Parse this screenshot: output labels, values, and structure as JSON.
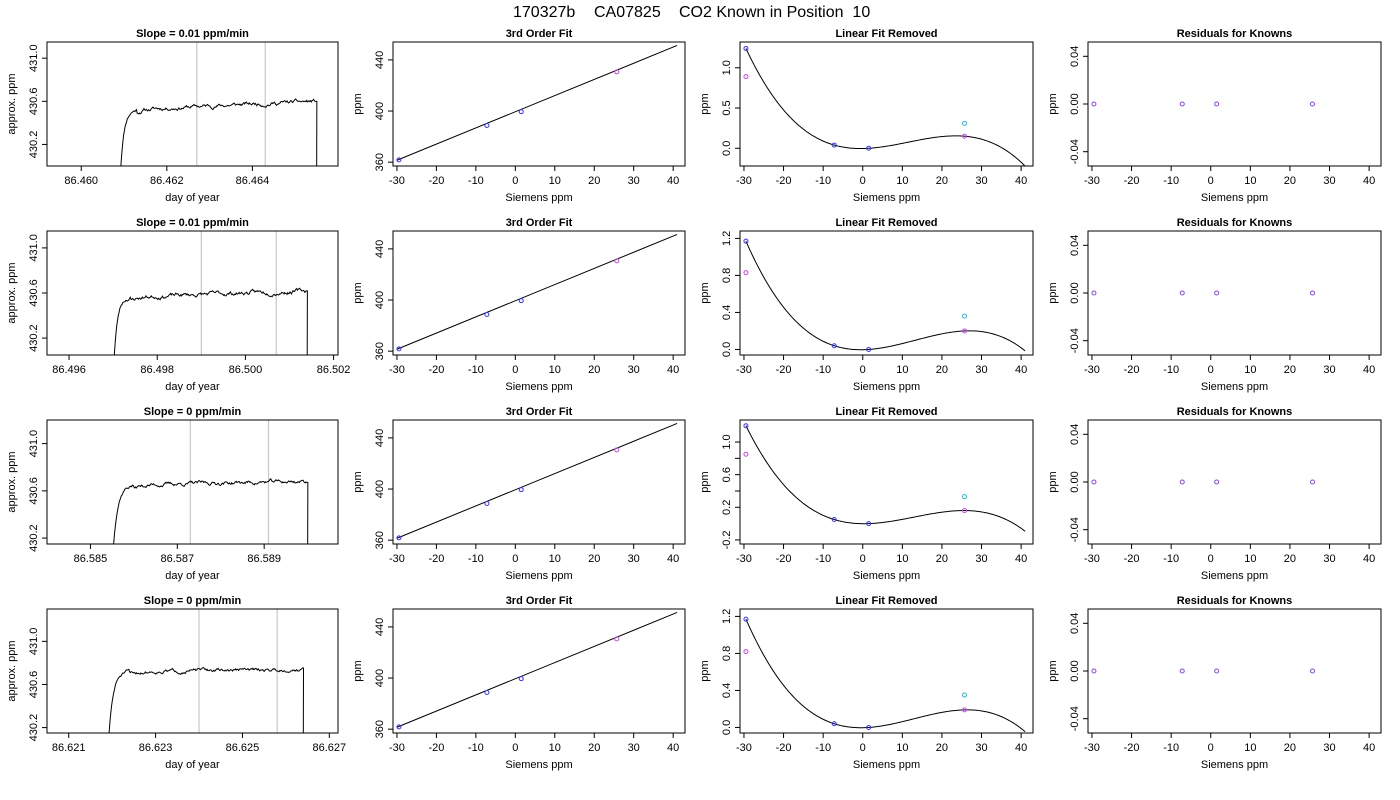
{
  "figure": {
    "title_parts": [
      "170327b",
      "CA07825",
      "CO2 Known in Position  10"
    ]
  },
  "colors": {
    "trace": "#000000",
    "window": "#c8c8c8",
    "fit_line": "#000000",
    "point_blue": "#3333ff",
    "point_magenta": "#cc44ee",
    "point_cyan": "#22bbdd",
    "point_purple": "#8844ee"
  },
  "chart_data": [
    {
      "type": "line",
      "panel": "timeseries",
      "row": 0,
      "title": "Slope =  0.01  ppm/min",
      "xlabel": "day of year",
      "ylabel": "approx. ppm",
      "xlim": [
        86.4592,
        86.466
      ],
      "ylim": [
        430.0,
        431.15
      ],
      "xticks": [
        86.46,
        86.462,
        86.464
      ],
      "xtick_labels": [
        "86.460",
        "86.462",
        "86.464"
      ],
      "yticks": [
        430.2,
        430.6,
        431.0
      ],
      "ytick_labels": [
        "430.2",
        "430.6",
        "431.0"
      ],
      "window": [
        86.4627,
        86.4643
      ],
      "trace": {
        "t_start": 86.4609,
        "t_rise": 86.4613,
        "t_end": 86.4655,
        "plateau": 430.52,
        "final": 430.6,
        "noise": 0.015,
        "seed": 11
      }
    },
    {
      "type": "line",
      "panel": "timeseries",
      "row": 1,
      "title": "Slope =  0.01  ppm/min",
      "xlabel": "day of year",
      "ylabel": "approx. ppm",
      "xlim": [
        86.4955,
        86.5021
      ],
      "ylim": [
        430.05,
        431.15
      ],
      "xticks": [
        86.496,
        86.498,
        86.5,
        86.502
      ],
      "xtick_labels": [
        "86.496",
        "86.498",
        "86.500",
        "86.502"
      ],
      "yticks": [
        430.2,
        430.6,
        431.0
      ],
      "ytick_labels": [
        "430.2",
        "430.6",
        "431.0"
      ],
      "window": [
        86.499,
        86.5007
      ],
      "trace": {
        "t_start": 86.497,
        "t_rise": 86.4974,
        "t_end": 86.5014,
        "plateau": 430.56,
        "final": 430.62,
        "noise": 0.015,
        "seed": 23
      }
    },
    {
      "type": "line",
      "panel": "timeseries",
      "row": 2,
      "title": "Slope =  0  ppm/min",
      "xlabel": "day of year",
      "ylabel": "approx. ppm",
      "xlim": [
        86.584,
        86.5907
      ],
      "ylim": [
        430.15,
        431.2
      ],
      "xticks": [
        86.585,
        86.587,
        86.589
      ],
      "xtick_labels": [
        "86.585",
        "86.587",
        "86.589"
      ],
      "yticks": [
        430.2,
        430.6,
        431.0
      ],
      "ytick_labels": [
        "430.2",
        "430.6",
        "431.0"
      ],
      "window": [
        86.5873,
        86.5891
      ],
      "trace": {
        "t_start": 86.5855,
        "t_rise": 86.586,
        "t_end": 86.59,
        "plateau": 430.65,
        "final": 430.68,
        "noise": 0.013,
        "seed": 37
      }
    },
    {
      "type": "line",
      "panel": "timeseries",
      "row": 3,
      "title": "Slope =  0  ppm/min",
      "xlabel": "day of year",
      "ylabel": "approx. ppm",
      "xlim": [
        86.6205,
        86.6272
      ],
      "ylim": [
        430.15,
        431.3
      ],
      "xticks": [
        86.621,
        86.623,
        86.625,
        86.627
      ],
      "xtick_labels": [
        "86.621",
        "86.623",
        "86.625",
        "86.627"
      ],
      "yticks": [
        430.2,
        430.6,
        431.0
      ],
      "ytick_labels": [
        "430.2",
        "430.6",
        "431.0"
      ],
      "window": [
        86.624,
        86.6258
      ],
      "trace": {
        "t_start": 86.6219,
        "t_rise": 86.6224,
        "t_end": 86.6264,
        "plateau": 430.72,
        "final": 430.74,
        "noise": 0.013,
        "seed": 51
      }
    },
    {
      "type": "scatter",
      "panel": "fit",
      "row": 0,
      "title": "3rd Order Fit",
      "xlabel": "Siemens ppm",
      "ylabel": "ppm",
      "xlim": [
        -31,
        43
      ],
      "ylim": [
        357,
        454
      ],
      "xticks": [
        -30,
        -20,
        -10,
        0,
        10,
        20,
        30,
        40
      ],
      "xtick_labels": [
        "-30",
        "-20",
        "-10",
        "0",
        "10",
        "20",
        "30",
        "40"
      ],
      "yticks": [
        360,
        400,
        440
      ],
      "ytick_labels": [
        "360",
        "400",
        "440"
      ],
      "line": {
        "x": [
          -30,
          41
        ],
        "y": [
          361.5,
          451.3
        ]
      },
      "points": [
        {
          "x": -29.5,
          "y": 361.8,
          "color": "point_blue"
        },
        {
          "x": -7.2,
          "y": 388.7,
          "color": "point_blue"
        },
        {
          "x": 1.5,
          "y": 399.5,
          "color": "point_blue"
        },
        {
          "x": 25.7,
          "y": 430.6,
          "color": "point_magenta"
        }
      ]
    },
    {
      "type": "scatter",
      "panel": "fit",
      "row": 1,
      "title": "3rd Order Fit",
      "xlabel": "Siemens ppm",
      "ylabel": "ppm",
      "xlim": [
        -31,
        43
      ],
      "ylim": [
        357,
        454
      ],
      "xticks": [
        -30,
        -20,
        -10,
        0,
        10,
        20,
        30,
        40
      ],
      "xtick_labels": [
        "-30",
        "-20",
        "-10",
        "0",
        "10",
        "20",
        "30",
        "40"
      ],
      "yticks": [
        360,
        400,
        440
      ],
      "ytick_labels": [
        "360",
        "400",
        "440"
      ],
      "line": {
        "x": [
          -30,
          41
        ],
        "y": [
          361.5,
          451.3
        ]
      },
      "points": [
        {
          "x": -29.5,
          "y": 361.8,
          "color": "point_blue"
        },
        {
          "x": -7.2,
          "y": 388.7,
          "color": "point_blue"
        },
        {
          "x": 1.5,
          "y": 399.5,
          "color": "point_blue"
        },
        {
          "x": 25.7,
          "y": 430.6,
          "color": "point_magenta"
        }
      ]
    },
    {
      "type": "scatter",
      "panel": "fit",
      "row": 2,
      "title": "3rd Order Fit",
      "xlabel": "Siemens ppm",
      "ylabel": "ppm",
      "xlim": [
        -31,
        43
      ],
      "ylim": [
        357,
        454
      ],
      "xticks": [
        -30,
        -20,
        -10,
        0,
        10,
        20,
        30,
        40
      ],
      "xtick_labels": [
        "-30",
        "-20",
        "-10",
        "0",
        "10",
        "20",
        "30",
        "40"
      ],
      "yticks": [
        360,
        400,
        440
      ],
      "ytick_labels": [
        "360",
        "400",
        "440"
      ],
      "line": {
        "x": [
          -30,
          41
        ],
        "y": [
          361.5,
          451.3
        ]
      },
      "points": [
        {
          "x": -29.5,
          "y": 361.8,
          "color": "point_blue"
        },
        {
          "x": -7.2,
          "y": 388.7,
          "color": "point_blue"
        },
        {
          "x": 1.5,
          "y": 399.5,
          "color": "point_blue"
        },
        {
          "x": 25.7,
          "y": 430.6,
          "color": "point_magenta"
        }
      ]
    },
    {
      "type": "scatter",
      "panel": "fit",
      "row": 3,
      "title": "3rd Order Fit",
      "xlabel": "Siemens ppm",
      "ylabel": "ppm",
      "xlim": [
        -31,
        43
      ],
      "ylim": [
        357,
        454
      ],
      "xticks": [
        -30,
        -20,
        -10,
        0,
        10,
        20,
        30,
        40
      ],
      "xtick_labels": [
        "-30",
        "-20",
        "-10",
        "0",
        "10",
        "20",
        "30",
        "40"
      ],
      "yticks": [
        360,
        400,
        440
      ],
      "ytick_labels": [
        "360",
        "400",
        "440"
      ],
      "line": {
        "x": [
          -30,
          41
        ],
        "y": [
          361.5,
          451.3
        ]
      },
      "points": [
        {
          "x": -29.5,
          "y": 361.8,
          "color": "point_blue"
        },
        {
          "x": -7.2,
          "y": 388.7,
          "color": "point_blue"
        },
        {
          "x": 1.5,
          "y": 399.5,
          "color": "point_blue"
        },
        {
          "x": 25.7,
          "y": 430.6,
          "color": "point_magenta"
        }
      ]
    },
    {
      "type": "scatter",
      "panel": "linear_removed",
      "row": 0,
      "title": "Linear Fit Removed",
      "xlabel": "Siemens ppm",
      "ylabel": "ppm",
      "xlim": [
        -31,
        43
      ],
      "ylim": [
        -0.22,
        1.32
      ],
      "xticks": [
        -30,
        -20,
        -10,
        0,
        10,
        20,
        30,
        40
      ],
      "xtick_labels": [
        "-30",
        "-20",
        "-10",
        "0",
        "10",
        "20",
        "30",
        "40"
      ],
      "yticks": [
        0.0,
        0.5,
        1.0
      ],
      "ytick_labels": [
        "0.0",
        "0.5",
        "1.0"
      ],
      "curve": {
        "x": [
          -29.5,
          -7.2,
          1.5,
          25.7
        ],
        "y": [
          1.24,
          0.04,
          0.0,
          0.15
        ],
        "x_range": [
          -29.5,
          41
        ]
      },
      "points": [
        {
          "x": -29.5,
          "y": 1.24,
          "color": "point_blue"
        },
        {
          "x": -29.5,
          "y": 0.89,
          "color": "point_magenta"
        },
        {
          "x": -7.2,
          "y": 0.04,
          "color": "point_blue"
        },
        {
          "x": 1.5,
          "y": 0.0,
          "color": "point_blue"
        },
        {
          "x": 25.7,
          "y": 0.31,
          "color": "point_cyan"
        },
        {
          "x": 25.7,
          "y": 0.15,
          "color": "point_magenta"
        }
      ]
    },
    {
      "type": "scatter",
      "panel": "linear_removed",
      "row": 1,
      "title": "Linear Fit Removed",
      "xlabel": "Siemens ppm",
      "ylabel": "ppm",
      "xlim": [
        -31,
        43
      ],
      "ylim": [
        -0.06,
        1.28
      ],
      "xticks": [
        -30,
        -20,
        -10,
        0,
        10,
        20,
        30,
        40
      ],
      "xtick_labels": [
        "-30",
        "-20",
        "-10",
        "0",
        "10",
        "20",
        "30",
        "40"
      ],
      "yticks": [
        0.0,
        0.4,
        0.8,
        1.2
      ],
      "ytick_labels": [
        "0.0",
        "0.4",
        "0.8",
        "1.2"
      ],
      "curve": {
        "x": [
          -29.5,
          -7.2,
          1.5,
          25.7
        ],
        "y": [
          1.17,
          0.04,
          0.0,
          0.2
        ],
        "x_range": [
          -29.5,
          41
        ]
      },
      "points": [
        {
          "x": -29.5,
          "y": 1.17,
          "color": "point_blue"
        },
        {
          "x": -29.5,
          "y": 0.83,
          "color": "point_magenta"
        },
        {
          "x": -7.2,
          "y": 0.04,
          "color": "point_blue"
        },
        {
          "x": 1.5,
          "y": 0.0,
          "color": "point_blue"
        },
        {
          "x": 25.7,
          "y": 0.36,
          "color": "point_cyan"
        },
        {
          "x": 25.7,
          "y": 0.2,
          "color": "point_magenta"
        }
      ]
    },
    {
      "type": "scatter",
      "panel": "linear_removed",
      "row": 2,
      "title": "Linear Fit Removed",
      "xlabel": "Siemens ppm",
      "ylabel": "ppm",
      "xlim": [
        -31,
        43
      ],
      "ylim": [
        -0.25,
        1.27
      ],
      "xticks": [
        -30,
        -20,
        -10,
        0,
        10,
        20,
        30,
        40
      ],
      "xtick_labels": [
        "-30",
        "-20",
        "-10",
        "0",
        "10",
        "20",
        "30",
        "40"
      ],
      "yticks": [
        -0.2,
        0.2,
        0.6,
        1.0
      ],
      "ytick_labels": [
        "-0.2",
        "0.2",
        "0.6",
        "1.0"
      ],
      "ytick_minor": [
        0.4,
        0.8
      ],
      "curve": {
        "x": [
          -29.5,
          -7.2,
          1.5,
          25.7
        ],
        "y": [
          1.2,
          0.05,
          0.0,
          0.16
        ],
        "x_range": [
          -29.5,
          41
        ]
      },
      "points": [
        {
          "x": -29.5,
          "y": 1.2,
          "color": "point_blue"
        },
        {
          "x": -29.5,
          "y": 0.85,
          "color": "point_magenta"
        },
        {
          "x": -7.2,
          "y": 0.05,
          "color": "point_blue"
        },
        {
          "x": 1.5,
          "y": 0.0,
          "color": "point_blue"
        },
        {
          "x": 25.7,
          "y": 0.33,
          "color": "point_cyan"
        },
        {
          "x": 25.7,
          "y": 0.16,
          "color": "point_magenta"
        }
      ]
    },
    {
      "type": "scatter",
      "panel": "linear_removed",
      "row": 3,
      "title": "Linear Fit Removed",
      "xlabel": "Siemens ppm",
      "ylabel": "ppm",
      "xlim": [
        -31,
        43
      ],
      "ylim": [
        -0.06,
        1.28
      ],
      "xticks": [
        -30,
        -20,
        -10,
        0,
        10,
        20,
        30,
        40
      ],
      "xtick_labels": [
        "-30",
        "-20",
        "-10",
        "0",
        "10",
        "20",
        "30",
        "40"
      ],
      "yticks": [
        0.0,
        0.4,
        0.8,
        1.2
      ],
      "ytick_labels": [
        "0.0",
        "0.4",
        "0.8",
        "1.2"
      ],
      "curve": {
        "x": [
          -29.5,
          -7.2,
          1.5,
          25.7
        ],
        "y": [
          1.17,
          0.04,
          0.0,
          0.19
        ],
        "x_range": [
          -29.5,
          41
        ]
      },
      "points": [
        {
          "x": -29.5,
          "y": 1.17,
          "color": "point_blue"
        },
        {
          "x": -29.5,
          "y": 0.82,
          "color": "point_magenta"
        },
        {
          "x": -7.2,
          "y": 0.04,
          "color": "point_blue"
        },
        {
          "x": 1.5,
          "y": 0.0,
          "color": "point_blue"
        },
        {
          "x": 25.7,
          "y": 0.35,
          "color": "point_cyan"
        },
        {
          "x": 25.7,
          "y": 0.19,
          "color": "point_magenta"
        }
      ]
    },
    {
      "type": "scatter",
      "panel": "residuals",
      "row": 0,
      "title": "Residuals for Knowns",
      "xlabel": "Siemens ppm",
      "ylabel": "ppm",
      "xlim": [
        -31,
        43
      ],
      "ylim": [
        -0.052,
        0.052
      ],
      "xticks": [
        -30,
        -20,
        -10,
        0,
        10,
        20,
        30,
        40
      ],
      "xtick_labels": [
        "-30",
        "-20",
        "-10",
        "0",
        "10",
        "20",
        "30",
        "40"
      ],
      "yticks": [
        -0.04,
        0.0,
        0.04
      ],
      "ytick_labels": [
        "-0.04",
        "0.00",
        "0.04"
      ],
      "points": [
        {
          "x": -29.5,
          "y": 0.0,
          "color": "point_purple"
        },
        {
          "x": -7.2,
          "y": 0.0,
          "color": "point_purple"
        },
        {
          "x": 1.5,
          "y": 0.0,
          "color": "point_purple"
        },
        {
          "x": 25.7,
          "y": 0.0,
          "color": "point_purple"
        }
      ]
    },
    {
      "type": "scatter",
      "panel": "residuals",
      "row": 1,
      "title": "Residuals for Knowns",
      "xlabel": "Siemens ppm",
      "ylabel": "ppm",
      "xlim": [
        -31,
        43
      ],
      "ylim": [
        -0.052,
        0.052
      ],
      "xticks": [
        -30,
        -20,
        -10,
        0,
        10,
        20,
        30,
        40
      ],
      "xtick_labels": [
        "-30",
        "-20",
        "-10",
        "0",
        "10",
        "20",
        "30",
        "40"
      ],
      "yticks": [
        -0.04,
        0.0,
        0.04
      ],
      "ytick_labels": [
        "-0.04",
        "0.00",
        "0.04"
      ],
      "points": [
        {
          "x": -29.5,
          "y": 0.0,
          "color": "point_purple"
        },
        {
          "x": -7.2,
          "y": 0.0,
          "color": "point_purple"
        },
        {
          "x": 1.5,
          "y": 0.0,
          "color": "point_purple"
        },
        {
          "x": 25.7,
          "y": 0.0,
          "color": "point_purple"
        }
      ]
    },
    {
      "type": "scatter",
      "panel": "residuals",
      "row": 2,
      "title": "Residuals for Knowns",
      "xlabel": "Siemens ppm",
      "ylabel": "ppm",
      "xlim": [
        -31,
        43
      ],
      "ylim": [
        -0.052,
        0.052
      ],
      "xticks": [
        -30,
        -20,
        -10,
        0,
        10,
        20,
        30,
        40
      ],
      "xtick_labels": [
        "-30",
        "-20",
        "-10",
        "0",
        "10",
        "20",
        "30",
        "40"
      ],
      "yticks": [
        -0.04,
        0.0,
        0.04
      ],
      "ytick_labels": [
        "-0.04",
        "0.00",
        "0.04"
      ],
      "points": [
        {
          "x": -29.5,
          "y": 0.0,
          "color": "point_purple"
        },
        {
          "x": -7.2,
          "y": 0.0,
          "color": "point_purple"
        },
        {
          "x": 1.5,
          "y": 0.0,
          "color": "point_purple"
        },
        {
          "x": 25.7,
          "y": 0.0,
          "color": "point_purple"
        }
      ]
    },
    {
      "type": "scatter",
      "panel": "residuals",
      "row": 3,
      "title": "Residuals for Knowns",
      "xlabel": "Siemens ppm",
      "ylabel": "ppm",
      "xlim": [
        -31,
        43
      ],
      "ylim": [
        -0.052,
        0.052
      ],
      "xticks": [
        -30,
        -20,
        -10,
        0,
        10,
        20,
        30,
        40
      ],
      "xtick_labels": [
        "-30",
        "-20",
        "-10",
        "0",
        "10",
        "20",
        "30",
        "40"
      ],
      "yticks": [
        -0.04,
        0.0,
        0.04
      ],
      "ytick_labels": [
        "-0.04",
        "0.00",
        "0.04"
      ],
      "points": [
        {
          "x": -29.5,
          "y": 0.0,
          "color": "point_purple"
        },
        {
          "x": -7.2,
          "y": 0.0,
          "color": "point_purple"
        },
        {
          "x": 1.5,
          "y": 0.0,
          "color": "point_purple"
        },
        {
          "x": 25.7,
          "y": 0.0,
          "color": "point_purple"
        }
      ]
    }
  ]
}
